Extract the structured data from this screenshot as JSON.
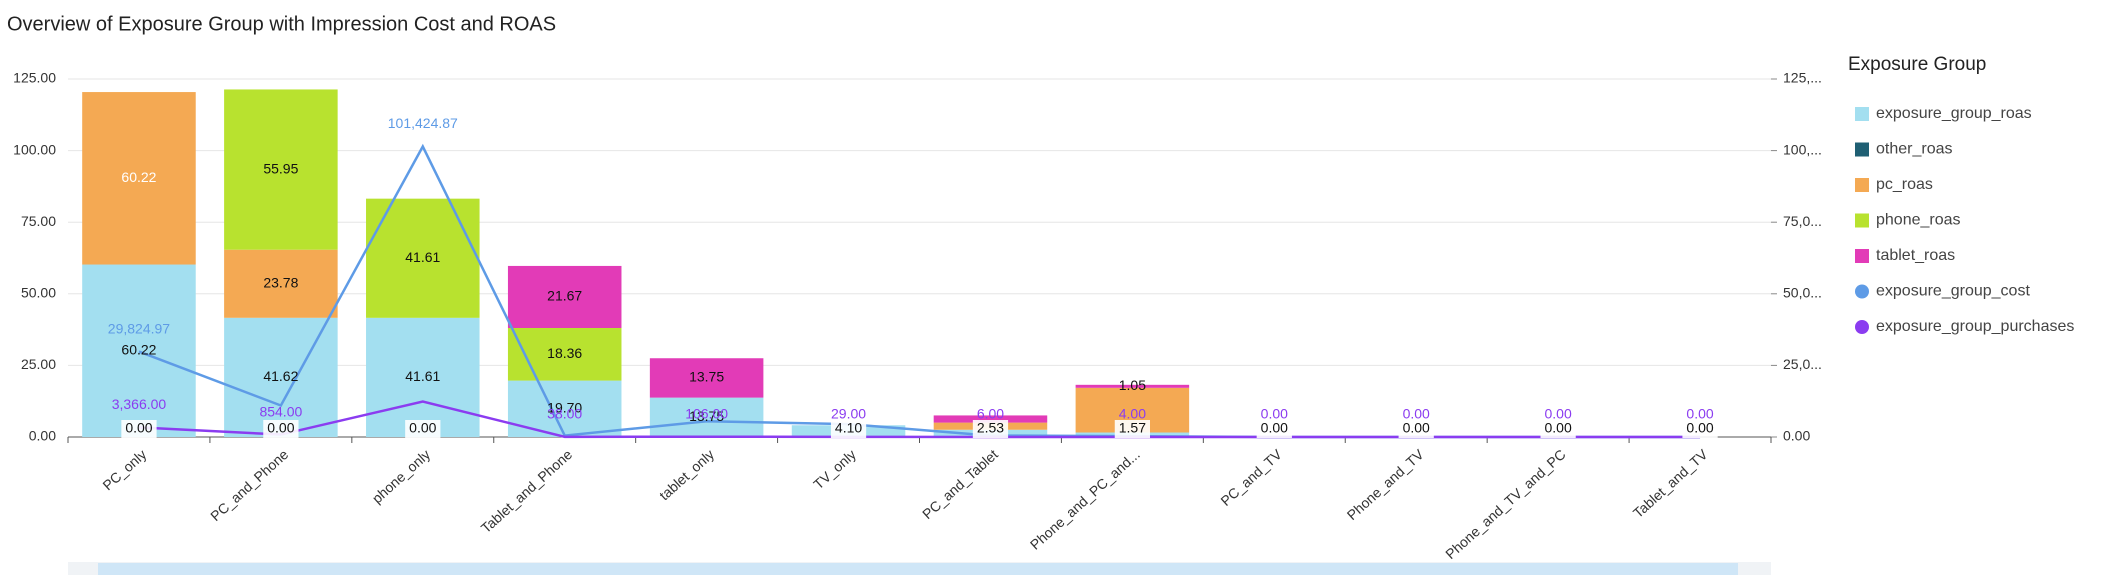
{
  "chart_data": {
    "type": "bar",
    "title": "Overview of Exposure Group with Impression Cost and ROAS",
    "legend_title": "Exposure Group",
    "legend_position": "right",
    "grid": true,
    "categories": [
      "PC_only",
      "PC_and_Phone",
      "phone_only",
      "Tablet_and_Phone",
      "tablet_only",
      "TV_only",
      "PC_and_Tablet",
      "Phone_and_PC_and...",
      "PC_and_TV",
      "Phone_and_TV",
      "Phone_and_TV_and_PC",
      "Tablet_and_TV"
    ],
    "ylim": [
      0,
      125
    ],
    "yticks": [
      {
        "value": 0,
        "label": "0.00"
      },
      {
        "value": 25,
        "label": "25.00"
      },
      {
        "value": 50,
        "label": "50.00"
      },
      {
        "value": 75,
        "label": "75.00"
      },
      {
        "value": 100,
        "label": "100.00"
      },
      {
        "value": 125,
        "label": "125.00"
      }
    ],
    "y2lim": [
      0,
      125000
    ],
    "y2ticks": [
      {
        "value": 0,
        "label": "0.00"
      },
      {
        "value": 25000,
        "label": "25,0..."
      },
      {
        "value": 50000,
        "label": "50,0..."
      },
      {
        "value": 75000,
        "label": "75,0..."
      },
      {
        "value": 100000,
        "label": "100,..."
      },
      {
        "value": 125000,
        "label": "125,..."
      }
    ],
    "series": [
      {
        "name": "exposure_group_roas",
        "type": "bar",
        "color": "#a3dff0",
        "values": [
          60.22,
          41.62,
          41.61,
          19.7,
          13.75,
          4.1,
          2.53,
          1.57,
          0,
          0,
          0,
          0
        ],
        "value_labels": [
          "60.22",
          "41.62",
          "41.61",
          "19.70",
          "13.75",
          "4.10",
          "2.53",
          "1.57",
          "0.00",
          "0.00",
          "0.00",
          "0.00"
        ]
      },
      {
        "name": "other_roas",
        "type": "bar",
        "color": "#1f5f73",
        "values": [
          0,
          0,
          0,
          0,
          0,
          0,
          0,
          0,
          0,
          0,
          0,
          0
        ],
        "value_labels": [
          "0.00",
          "0.00",
          "0.00",
          null,
          null,
          null,
          null,
          null,
          null,
          null,
          null,
          null
        ]
      },
      {
        "name": "pc_roas",
        "type": "bar",
        "color": "#f4a953",
        "values": [
          60.22,
          23.78,
          0,
          0,
          0,
          0,
          2.5,
          15.6,
          0,
          0,
          0,
          0
        ],
        "value_labels": [
          "60.22",
          "23.78",
          null,
          null,
          null,
          null,
          null,
          null,
          null,
          null,
          null,
          null
        ]
      },
      {
        "name": "phone_roas",
        "type": "bar",
        "color": "#b8e22f",
        "values": [
          0,
          55.95,
          41.61,
          18.36,
          0,
          0,
          0,
          0,
          0,
          0,
          0,
          0
        ],
        "value_labels": [
          null,
          "55.95",
          "41.61",
          "18.36",
          null,
          null,
          null,
          null,
          null,
          null,
          null,
          null
        ]
      },
      {
        "name": "tablet_roas",
        "type": "bar",
        "color": "#e23bb7",
        "values": [
          0,
          0,
          0,
          21.67,
          13.75,
          0,
          2.5,
          1.05,
          0,
          0,
          0,
          0
        ],
        "value_labels": [
          null,
          null,
          null,
          "21.67",
          "13.75",
          null,
          null,
          "1.05",
          null,
          null,
          null,
          null
        ]
      },
      {
        "name": "exposure_group_cost",
        "type": "line",
        "axis": "y2",
        "color": "#5e9be6",
        "values": [
          29824.97,
          11000,
          101424.87,
          500,
          5500,
          4500,
          500,
          300,
          0,
          0,
          0,
          0
        ],
        "value_labels": [
          "29,824.97",
          null,
          "101,424.87",
          null,
          null,
          null,
          null,
          null,
          null,
          null,
          null,
          null
        ]
      },
      {
        "name": "exposure_group_purchases",
        "type": "line",
        "axis": "y2",
        "color": "#8b3cf0",
        "values": [
          3366,
          854,
          12400,
          38,
          106,
          29,
          6,
          4,
          0,
          0,
          0,
          0
        ],
        "value_labels": [
          "3,366.00",
          "854.00",
          null,
          "38.00",
          "106.00",
          "29.00",
          "6.00",
          "4.00",
          "0.00",
          "0.00",
          "0.00",
          "0.00"
        ]
      }
    ]
  }
}
